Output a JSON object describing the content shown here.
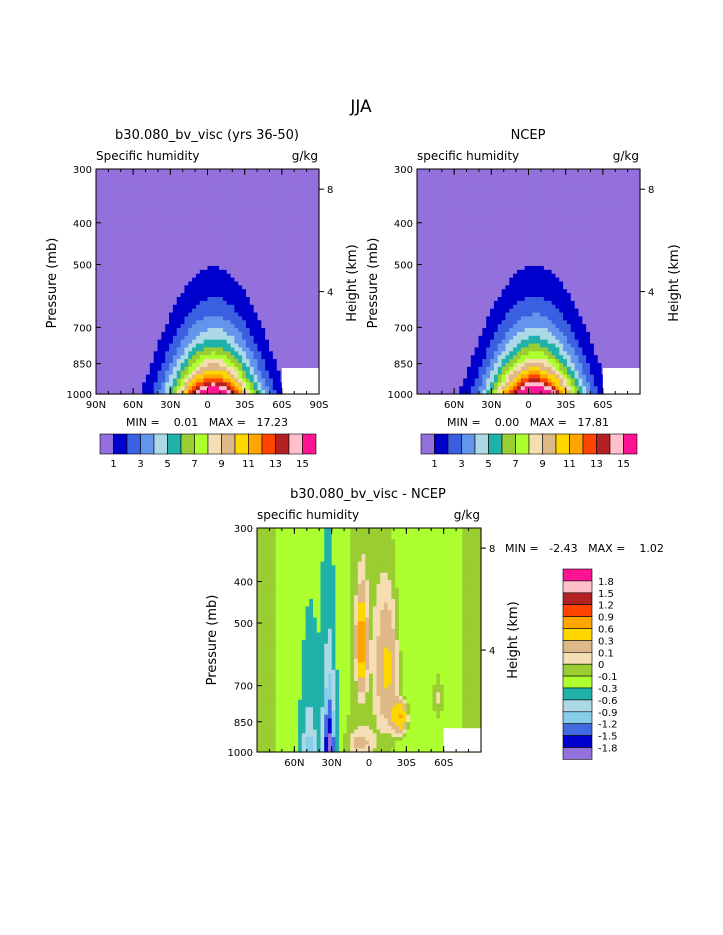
{
  "page_title": "JJA",
  "colors": {
    "humidity": [
      "#9370db",
      "#0000cd",
      "#3a5fe0",
      "#6495ed",
      "#add8e6",
      "#20b2aa",
      "#9acd32",
      "#adff2f",
      "#f5deb3",
      "#deb887",
      "#ffd700",
      "#ffa500",
      "#ff4500",
      "#b22222",
      "#ffc0cb",
      "#ff1493"
    ],
    "difference": [
      "#9370db",
      "#0000cd",
      "#4169e1",
      "#87ceeb",
      "#add8e6",
      "#20b2aa",
      "#adff2f",
      "#9acd32",
      "#f5deb3",
      "#deb887",
      "#ffd700",
      "#ffa500",
      "#ff4500",
      "#b22222",
      "#ffc0cb",
      "#ff1493"
    ]
  },
  "chart_data": [
    {
      "type": "heatmap",
      "title": "b30.080_bv_visc (yrs 36-50)",
      "subtitle_left": "Specific humidity",
      "subtitle_right": "g/kg",
      "ylabel": "Pressure (mb)",
      "y2label": "Height (km)",
      "x_ticks": [
        "90N",
        "60N",
        "30N",
        "0",
        "30S",
        "60S",
        "90S"
      ],
      "y_ticks": [
        "300",
        "400",
        "500",
        "700",
        "850",
        "1000"
      ],
      "y2_ticks": [
        "8",
        "4"
      ],
      "stats": "MIN =    0.01   MAX =   17.23",
      "min": 0.01,
      "max": 17.23,
      "levels": [
        1,
        2,
        3,
        4,
        5,
        6,
        7,
        8,
        9,
        10,
        11,
        12,
        13,
        14,
        15
      ],
      "colorbar_labels": [
        "1",
        "3",
        "5",
        "7",
        "9",
        "11",
        "13",
        "15"
      ],
      "peak_latitude": -5
    },
    {
      "type": "heatmap",
      "title": "NCEP",
      "subtitle_left": "specific humidity",
      "subtitle_right": "g/kg",
      "ylabel": "Pressure (mb)",
      "y2label": "Height (km)",
      "x_ticks": [
        "60N",
        "30N",
        "0",
        "30S",
        "60S"
      ],
      "y_ticks": [
        "300",
        "400",
        "500",
        "700",
        "850",
        "1000"
      ],
      "y2_ticks": [
        "8",
        "4"
      ],
      "stats": "MIN =    0.00   MAX =   17.81",
      "min": 0.0,
      "max": 17.81,
      "levels": [
        1,
        2,
        3,
        4,
        5,
        6,
        7,
        8,
        9,
        10,
        11,
        12,
        13,
        14,
        15
      ],
      "colorbar_labels": [
        "1",
        "3",
        "5",
        "7",
        "9",
        "11",
        "13",
        "15"
      ],
      "peak_latitude": -5
    },
    {
      "type": "heatmap",
      "title": "b30.080_bv_visc - NCEP",
      "subtitle_left": "specific humidity",
      "subtitle_right": "g/kg",
      "ylabel": "Pressure (mb)",
      "y2label": "Height (km)",
      "x_ticks": [
        "60N",
        "30N",
        "0",
        "30S",
        "60S"
      ],
      "y_ticks": [
        "300",
        "400",
        "500",
        "700",
        "850",
        "1000"
      ],
      "y2_ticks": [
        "8",
        "4"
      ],
      "stats": "MIN =   -2.43   MAX =    1.02",
      "min": -2.43,
      "max": 1.02,
      "levels": [
        -1.8,
        -1.5,
        -1.2,
        -0.9,
        -0.6,
        -0.3,
        -0.1,
        0,
        0.1,
        0.3,
        0.6,
        0.9,
        1.2,
        1.5,
        1.8
      ],
      "colorbar_labels": [
        "1.8",
        "1.5",
        "1.2",
        "0.9",
        "0.6",
        "0.3",
        "0.1",
        "0",
        "-0.1",
        "-0.3",
        "-0.6",
        "-0.9",
        "-1.2",
        "-1.5",
        "-1.8"
      ]
    }
  ]
}
